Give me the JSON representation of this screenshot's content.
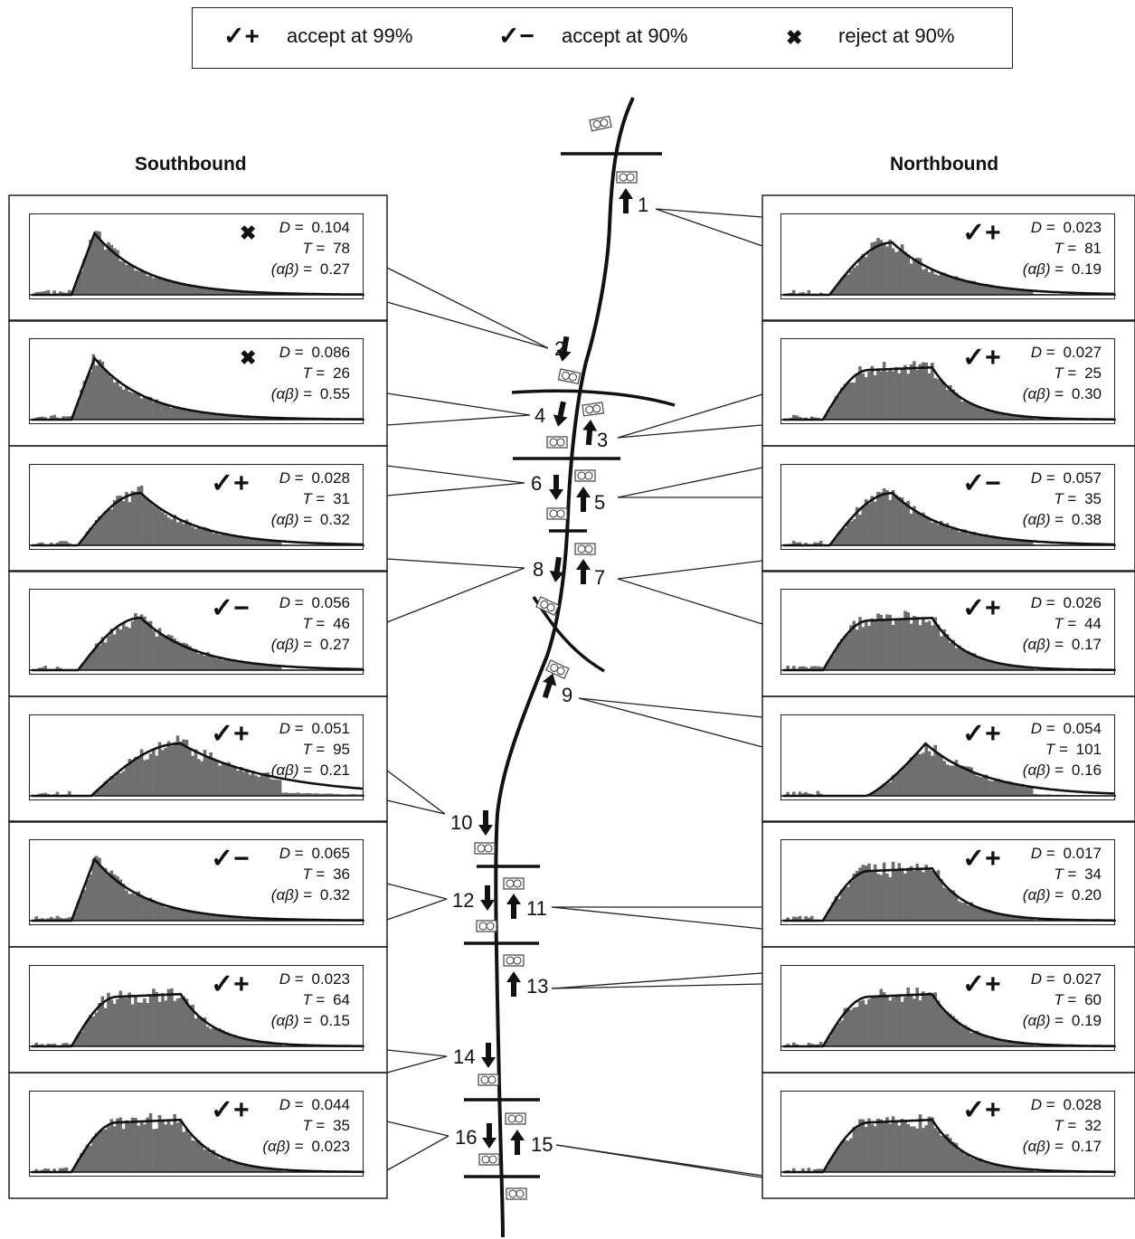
{
  "legend": {
    "items": [
      {
        "mark": "✓+",
        "label": "accept at 99%"
      },
      {
        "mark": "✓−",
        "label": "accept at 90%"
      },
      {
        "mark": "✖",
        "label": "reject at 90%"
      }
    ]
  },
  "southbound": {
    "title": "Southbound",
    "panels": [
      {
        "station": "2",
        "mark": "✖",
        "D": "0.104",
        "T": "78",
        "ab": "0.27",
        "curve": "early-peak"
      },
      {
        "station": "4",
        "mark": "✖",
        "D": "0.086",
        "T": "26",
        "ab": "0.55",
        "curve": "early-peak"
      },
      {
        "station": "6",
        "mark": "✓+",
        "D": "0.028",
        "T": "31",
        "ab": "0.32",
        "curve": "mid-peak"
      },
      {
        "station": "8",
        "mark": "✓−",
        "D": "0.056",
        "T": "46",
        "ab": "0.27",
        "curve": "mid-peak"
      },
      {
        "station": "10",
        "mark": "✓+",
        "D": "0.051",
        "T": "95",
        "ab": "0.21",
        "curve": "broad"
      },
      {
        "station": "12",
        "mark": "✓−",
        "D": "0.065",
        "T": "36",
        "ab": "0.32",
        "curve": "early-peak"
      },
      {
        "station": "14",
        "mark": "✓+",
        "D": "0.023",
        "T": "64",
        "ab": "0.15",
        "curve": "plateau"
      },
      {
        "station": "16",
        "mark": "✓+",
        "D": "0.044",
        "T": "35",
        "ab": "0.023",
        "curve": "plateau"
      }
    ]
  },
  "northbound": {
    "title": "Northbound",
    "panels": [
      {
        "station": "1",
        "mark": "✓+",
        "D": "0.023",
        "T": "81",
        "ab": "0.19",
        "curve": "mid-peak"
      },
      {
        "station": "3",
        "mark": "✓+",
        "D": "0.027",
        "T": "25",
        "ab": "0.30",
        "curve": "plateau"
      },
      {
        "station": "5",
        "mark": "✓−",
        "D": "0.057",
        "T": "35",
        "ab": "0.38",
        "curve": "mid-peak"
      },
      {
        "station": "7",
        "mark": "✓+",
        "D": "0.026",
        "T": "44",
        "ab": "0.17",
        "curve": "plateau"
      },
      {
        "station": "9",
        "mark": "✓+",
        "D": "0.054",
        "T": "101",
        "ab": "0.16",
        "curve": "late-peak"
      },
      {
        "station": "11",
        "mark": "✓+",
        "D": "0.017",
        "T": "34",
        "ab": "0.20",
        "curve": "plateau"
      },
      {
        "station": "13",
        "mark": "✓+",
        "D": "0.027",
        "T": "60",
        "ab": "0.19",
        "curve": "plateau"
      },
      {
        "station": "15",
        "mark": "✓+",
        "D": "0.028",
        "T": "32",
        "ab": "0.17",
        "curve": "plateau"
      }
    ]
  },
  "stat_labels": {
    "D": "D",
    "T": "T",
    "ab": "(αβ)"
  },
  "stations": [
    "1",
    "2",
    "3",
    "4",
    "5",
    "6",
    "7",
    "8",
    "9",
    "10",
    "11",
    "12",
    "13",
    "14",
    "15",
    "16"
  ]
}
